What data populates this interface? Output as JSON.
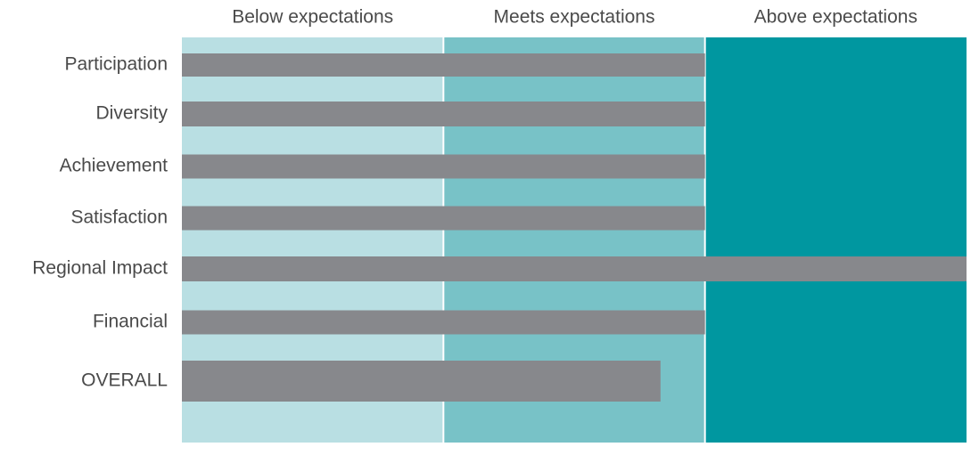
{
  "chart_data": {
    "type": "bar",
    "orientation": "horizontal",
    "categories": [
      "Participation",
      "Diversity",
      "Achievement",
      "Satisfaction",
      "Regional Impact",
      "Financial",
      "OVERALL"
    ],
    "values": [
      2.0,
      2.0,
      2.0,
      2.0,
      3.0,
      2.0,
      1.83
    ],
    "color": "#87888c",
    "xlim": [
      0,
      3
    ],
    "bands": [
      {
        "label": "Below expectations",
        "from": 0,
        "to": 1,
        "color": "#b9dfe3"
      },
      {
        "label": "Meets expectations",
        "from": 1,
        "to": 2,
        "color": "#78c2c7"
      },
      {
        "label": "Above expectations",
        "from": 2,
        "to": 3,
        "color": "#0097a0"
      }
    ]
  }
}
